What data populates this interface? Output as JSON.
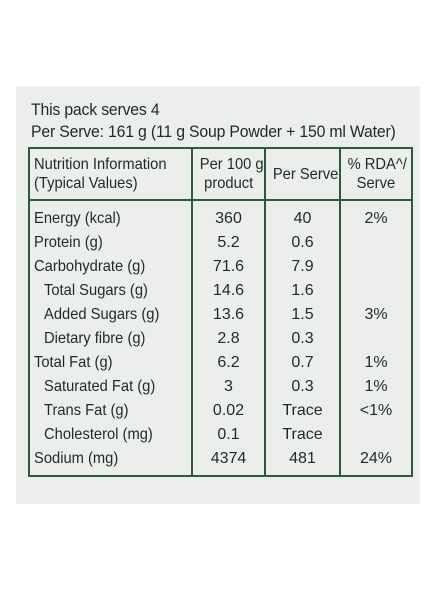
{
  "pack": {
    "serves": "This pack serves 4",
    "per_serve": "Per Serve: 161 g (11 g Soup Powder + 150 ml Water)"
  },
  "table": {
    "headers": {
      "col1_line1": "Nutrition Information",
      "col1_line2": "(Typical Values)",
      "col2_line1": "Per 100 g",
      "col2_line2": "product",
      "col3": "Per Serve",
      "col4_line1": "% RDA^/",
      "col4_line2": "Serve"
    },
    "rows": [
      {
        "name": "Energy (kcal)",
        "per100": "360",
        "perServe": "40",
        "rda": "2%"
      },
      {
        "name": "Protein (g)",
        "per100": "5.2",
        "perServe": "0.6",
        "rda": ""
      },
      {
        "name": "Carbohydrate (g)",
        "per100": "71.6",
        "perServe": "7.9",
        "rda": ""
      },
      {
        "name": "Total Sugars (g)",
        "per100": "14.6",
        "perServe": "1.6",
        "rda": ""
      },
      {
        "name": "Added Sugars (g)",
        "per100": "13.6",
        "perServe": "1.5",
        "rda": "3%"
      },
      {
        "name": "Dietary fibre (g)",
        "per100": "2.8",
        "perServe": "0.3",
        "rda": ""
      },
      {
        "name": "Total Fat (g)",
        "per100": "6.2",
        "perServe": "0.7",
        "rda": "1%"
      },
      {
        "name": "Saturated Fat (g)",
        "per100": "3",
        "perServe": "0.3",
        "rda": "1%"
      },
      {
        "name": "Trans Fat (g)",
        "per100": "0.02",
        "perServe": "Trace",
        "rda": "<1%"
      },
      {
        "name": "Cholesterol (mg)",
        "per100": "0.1",
        "perServe": "Trace",
        "rda": ""
      },
      {
        "name": "Sodium (mg)",
        "per100": "4374",
        "perServe": "481",
        "rda": "24%"
      }
    ]
  }
}
